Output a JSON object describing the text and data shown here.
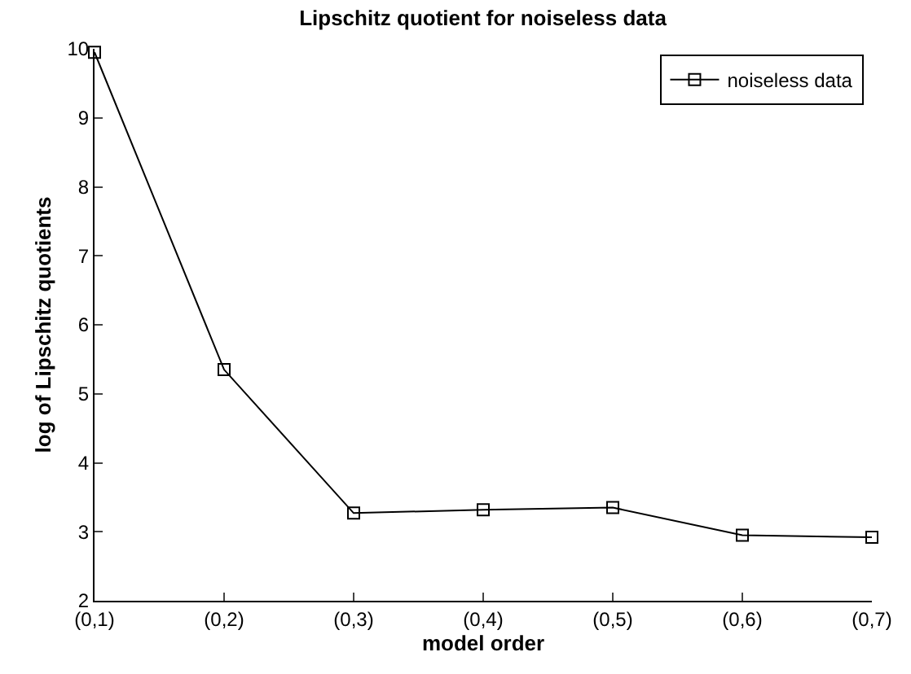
{
  "chart_data": {
    "type": "line",
    "title": "Lipschitz quotient for noiseless data",
    "xlabel": "model order",
    "ylabel": "log of Lipschitz quotients",
    "categories": [
      "(0,1)",
      "(0,2)",
      "(0,3)",
      "(0,4)",
      "(0,5)",
      "(0,6)",
      "(0,7)"
    ],
    "series": [
      {
        "name": "noiseless data",
        "color": "#000000",
        "values": [
          9.95,
          5.35,
          3.27,
          3.32,
          3.35,
          2.95,
          2.92
        ]
      }
    ],
    "ylim": [
      2,
      10
    ],
    "yticks": [
      2,
      3,
      4,
      5,
      6,
      7,
      8,
      9,
      10
    ],
    "grid": false,
    "legend": "top right",
    "marker": "square",
    "line_style": "solid"
  }
}
